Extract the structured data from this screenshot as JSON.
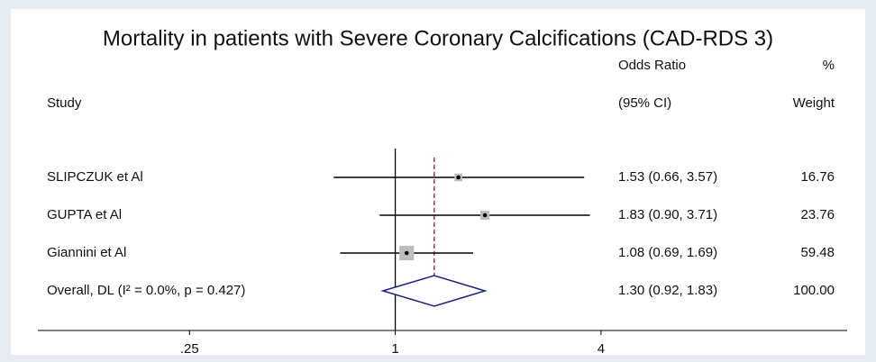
{
  "chart_data": {
    "type": "forest",
    "title": "Mortality in patients with Severe Coronary Calcifications (CAD-RDS 3)",
    "headers": {
      "study": "Study",
      "or_top": "Odds Ratio",
      "or_bottom": "(95% CI)",
      "weight_top": "%",
      "weight_bottom": "Weight"
    },
    "categories": [
      "SLIPCZUK et Al",
      "GUPTA et Al",
      "Giannini et Al",
      "Overall, DL (I² = 0.0%, p = 0.427)"
    ],
    "values": [
      1.53,
      1.83,
      1.08,
      1.3
    ],
    "lower": [
      0.66,
      0.9,
      0.69,
      0.92
    ],
    "upper": [
      3.57,
      3.71,
      1.69,
      1.83
    ],
    "value_labels": [
      "1.53 (0.66, 3.57)",
      "1.83 (0.90, 3.71)",
      "1.08 (0.69, 1.69)",
      "1.30 (0.92, 1.83)"
    ],
    "weights": [
      16.76,
      23.76,
      59.48,
      100
    ],
    "weight_labels": [
      "16.76",
      "23.76",
      "59.48",
      "100.00"
    ],
    "xlog": true,
    "xlim": [
      0.09,
      21
    ],
    "xticks": [
      {
        "value": 0.25,
        "label": ".25"
      },
      1,
      4
    ],
    "ref_line": 1,
    "box_color": "#bdbdbd",
    "diamond_color": "#1a237e",
    "overall_line_color": "#8b1a1a"
  }
}
